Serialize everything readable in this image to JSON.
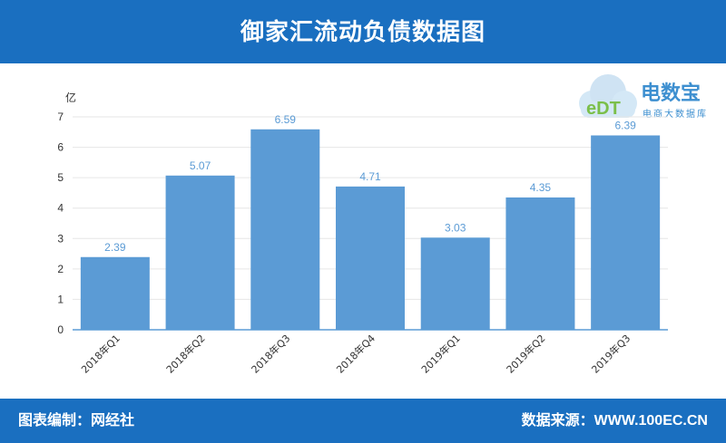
{
  "header": {
    "title": "御家汇流动负债数据图"
  },
  "footer": {
    "left_text": "图表编制：网经社",
    "right_text": "数据来源：WWW.100EC.CN"
  },
  "logo": {
    "mark_text": "eDT",
    "name": "电数宝",
    "tagline": "电商大数据库"
  },
  "colors": {
    "bar": "#5b9bd5",
    "label": "#5b9bd5",
    "header_bg": "#1a6fc0",
    "axis": "#5b9bd5",
    "grid": "#e6e6e6"
  },
  "chart_data": {
    "type": "bar",
    "title": "御家汇流动负债数据图",
    "ylabel": "亿",
    "xlabel": "",
    "categories": [
      "2018年Q1",
      "2018年Q2",
      "2018年Q3",
      "2018年Q4",
      "2019年Q1",
      "2019年Q2",
      "2019年Q3"
    ],
    "values": [
      2.39,
      5.07,
      6.59,
      4.71,
      3.03,
      4.35,
      6.39
    ],
    "value_labels": [
      "2.39",
      "5.07",
      "6.59",
      "4.71",
      "3.03",
      "4.35",
      "6.39"
    ],
    "ylim": [
      0,
      7
    ],
    "yticks": [
      "0",
      "1",
      "2",
      "3",
      "4",
      "5",
      "6",
      "7"
    ],
    "grid": true,
    "legend": "none"
  }
}
